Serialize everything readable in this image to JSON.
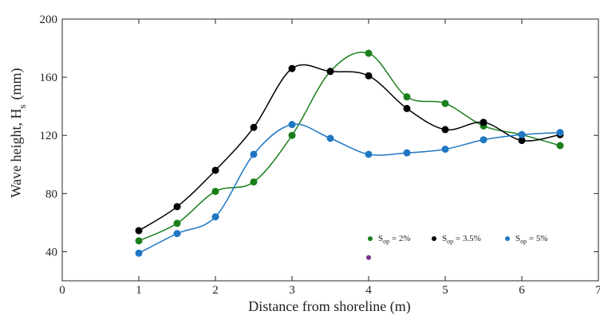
{
  "chart_data": {
    "type": "line",
    "title": "",
    "xlabel": "Distance from shoreline (m)",
    "ylabel": "Wave height, H",
    "ylabel_sub": "s",
    "ylabel_unit": "(mm)",
    "xlim": [
      0,
      7
    ],
    "ylim": [
      20,
      200
    ],
    "xticks": [
      0,
      1,
      2,
      3,
      4,
      5,
      6,
      7
    ],
    "yticks": [
      40,
      80,
      120,
      160,
      200
    ],
    "grid": false,
    "legend_position": "bottom-right",
    "series": [
      {
        "name": "S",
        "name_sub": "op",
        "name_suffix": " = 2%",
        "color": "#1a7f1a",
        "x": [
          1,
          1.5,
          2,
          2.5,
          3,
          3.5,
          4,
          4.5,
          5,
          5.5,
          6,
          6.5
        ],
        "values": [
          47.5,
          59.5,
          81.5,
          88,
          120,
          164,
          176.5,
          146.5,
          142,
          126.5,
          120.5,
          113
        ]
      },
      {
        "name": "S",
        "name_sub": "op",
        "name_suffix": " = 3.5%",
        "color": "#000000",
        "x": [
          1,
          1.5,
          2,
          2.5,
          3,
          3.5,
          4,
          4.5,
          5,
          5.5,
          6,
          6.5
        ],
        "values": [
          54.5,
          71,
          96,
          125.5,
          166,
          164,
          161,
          138.5,
          124,
          129,
          116.5,
          120.5
        ]
      },
      {
        "name": "S",
        "name_sub": "op",
        "name_suffix": " = 5%",
        "color": "#1f77c4",
        "x": [
          1,
          1.5,
          2,
          2.5,
          3,
          3.5,
          4,
          4.5,
          5,
          5.5,
          6,
          6.5
        ],
        "values": [
          39,
          52.5,
          64,
          107,
          127.5,
          118,
          107,
          108,
          110.5,
          117,
          120.5,
          122
        ]
      }
    ],
    "extra_points": [
      {
        "x": 4.0,
        "y": 36,
        "color": "#7b2d8e"
      }
    ]
  }
}
